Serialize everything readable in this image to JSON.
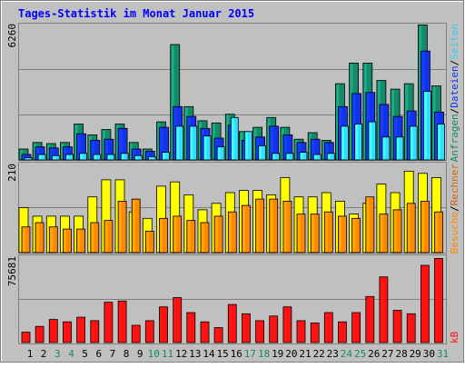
{
  "chart_data": [
    {
      "type": "bar",
      "title": "Tages-Statistik im Monat Januar 2015",
      "ymax_label": "6260",
      "right_labels": [
        "Anfragen",
        "/",
        "Dateien",
        "/",
        "Seiten"
      ],
      "categories": [
        "1",
        "2",
        "3",
        "4",
        "5",
        "6",
        "7",
        "8",
        "9",
        "10",
        "11",
        "12",
        "13",
        "14",
        "15",
        "16",
        "17",
        "18",
        "19",
        "20",
        "21",
        "22",
        "23",
        "24",
        "25",
        "26",
        "27",
        "28",
        "29",
        "30",
        "31"
      ],
      "weekend_days": [
        "3",
        "4",
        "10",
        "11",
        "17",
        "18",
        "24",
        "25",
        "31"
      ],
      "ylim": [
        0,
        6260
      ],
      "series": [
        {
          "name": "Anfragen",
          "color": "#138a6a",
          "values": [
            500,
            800,
            750,
            800,
            1650,
            1150,
            1400,
            1650,
            800,
            500,
            1750,
            5300,
            2450,
            1800,
            1700,
            2100,
            1300,
            1500,
            1950,
            1500,
            950,
            1250,
            900,
            3500,
            4450,
            4450,
            3650,
            3250,
            3500,
            6200,
            3400
          ]
        },
        {
          "name": "Dateien",
          "color": "#1133ee",
          "values": [
            250,
            600,
            550,
            600,
            1200,
            900,
            950,
            1450,
            500,
            400,
            1500,
            2450,
            2000,
            1450,
            1000,
            1600,
            900,
            1050,
            1550,
            1150,
            800,
            950,
            800,
            2450,
            3050,
            3100,
            2550,
            2000,
            2250,
            5000,
            2200
          ]
        },
        {
          "name": "Seiten",
          "color": "#33ddff",
          "values": [
            100,
            250,
            200,
            250,
            300,
            250,
            250,
            300,
            200,
            150,
            350,
            1550,
            1550,
            1100,
            600,
            1950,
            1300,
            650,
            300,
            300,
            350,
            250,
            300,
            1550,
            1650,
            1750,
            1050,
            1050,
            1550,
            3150,
            1650
          ]
        }
      ]
    },
    {
      "type": "bar",
      "ymax_label": "210",
      "right_labels": [
        "Besuche",
        "/",
        "Rechner"
      ],
      "categories": [
        "1",
        "2",
        "3",
        "4",
        "5",
        "6",
        "7",
        "8",
        "9",
        "10",
        "11",
        "12",
        "13",
        "14",
        "15",
        "16",
        "17",
        "18",
        "19",
        "20",
        "21",
        "22",
        "23",
        "24",
        "25",
        "26",
        "27",
        "28",
        "29",
        "30",
        "31"
      ],
      "ylim": [
        0,
        210
      ],
      "series": [
        {
          "name": "Besuche",
          "color": "#ffff00",
          "values": [
            105,
            85,
            85,
            85,
            85,
            130,
            170,
            170,
            95,
            80,
            155,
            165,
            135,
            100,
            115,
            140,
            145,
            145,
            135,
            175,
            130,
            130,
            140,
            120,
            90,
            115,
            160,
            140,
            190,
            185,
            175
          ]
        },
        {
          "name": "Rechner",
          "color": "#ff8800",
          "values": [
            60,
            70,
            60,
            55,
            55,
            70,
            75,
            120,
            125,
            50,
            80,
            85,
            75,
            70,
            85,
            95,
            110,
            125,
            125,
            120,
            90,
            90,
            95,
            85,
            80,
            130,
            90,
            100,
            115,
            120,
            95
          ]
        }
      ]
    },
    {
      "type": "bar",
      "ymax_label": "75681",
      "right_labels": [
        "kB"
      ],
      "categories": [
        "1",
        "2",
        "3",
        "4",
        "5",
        "6",
        "7",
        "8",
        "9",
        "10",
        "11",
        "12",
        "13",
        "14",
        "15",
        "16",
        "17",
        "18",
        "19",
        "20",
        "21",
        "22",
        "23",
        "24",
        "25",
        "26",
        "27",
        "28",
        "29",
        "30",
        "31"
      ],
      "ylim": [
        0,
        75681
      ],
      "series": [
        {
          "name": "kB",
          "color": "#ff1111",
          "values": [
            9000,
            14000,
            20000,
            18000,
            22000,
            19000,
            35000,
            36000,
            15000,
            19000,
            31000,
            39000,
            26000,
            18000,
            13000,
            33000,
            25000,
            19000,
            23000,
            31000,
            19000,
            17000,
            26000,
            18000,
            26000,
            40000,
            57000,
            28000,
            25000,
            67000,
            73000
          ]
        }
      ]
    }
  ]
}
